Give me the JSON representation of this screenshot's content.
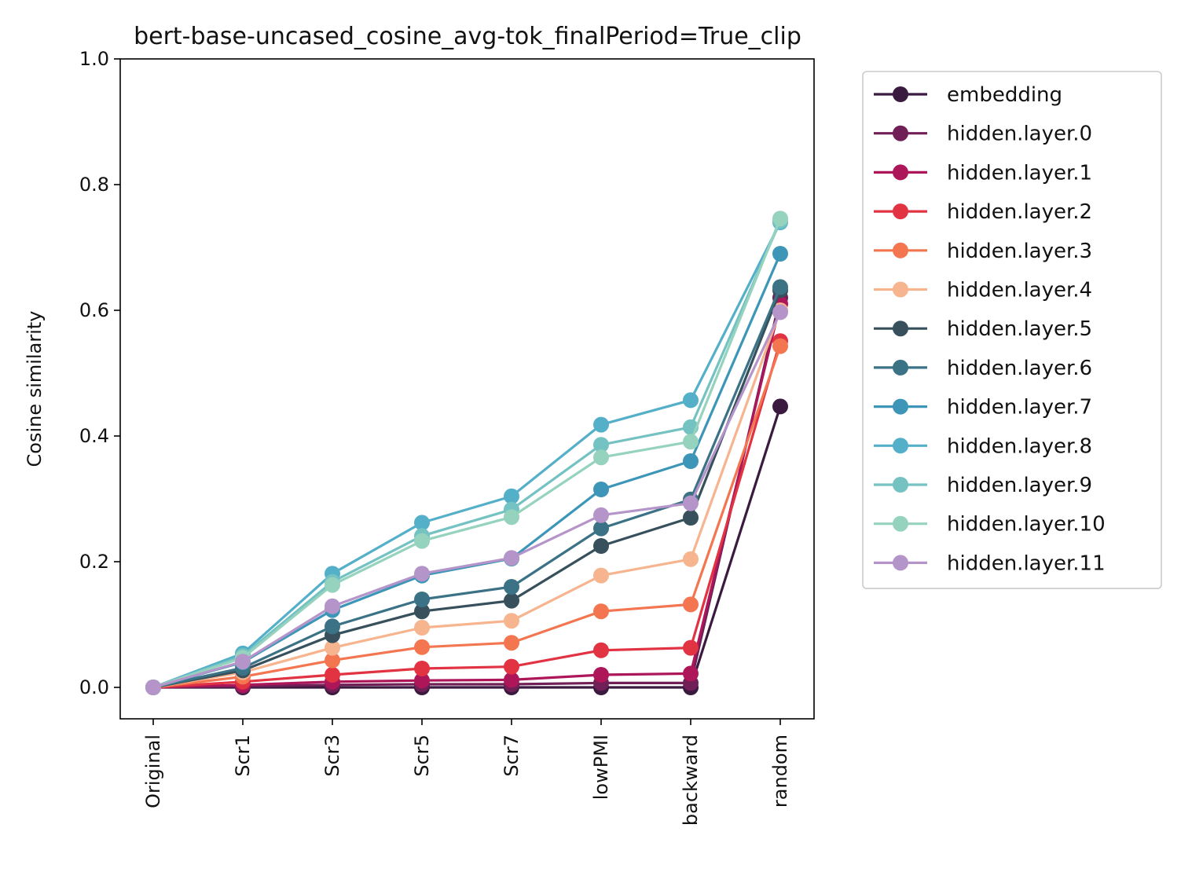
{
  "chart_data": {
    "type": "line",
    "title": "bert-base-uncased_cosine_avg-tok_finalPeriod=True_clip",
    "xlabel": "",
    "ylabel": "Cosine similarity",
    "ylim": [
      -0.05,
      1.0
    ],
    "yticks": [
      "0.0",
      "0.2",
      "0.4",
      "0.6",
      "0.8",
      "1.0"
    ],
    "categories": [
      "Original",
      "Scr1",
      "Scr3",
      "Scr5",
      "Scr7",
      "lowPMI",
      "backward",
      "random"
    ],
    "grid": false,
    "legend_position": "outside-right",
    "series": [
      {
        "name": "embedding",
        "color": "#3b1a40",
        "values": [
          0.0,
          0.0,
          0.0,
          0.0,
          0.0,
          0.0,
          0.0,
          0.447
        ]
      },
      {
        "name": "hidden.layer.0",
        "color": "#701f57",
        "values": [
          0.0,
          0.002,
          0.004,
          0.005,
          0.005,
          0.007,
          0.007,
          0.62
        ]
      },
      {
        "name": "hidden.layer.1",
        "color": "#ad1759",
        "values": [
          0.0,
          0.004,
          0.009,
          0.011,
          0.012,
          0.02,
          0.022,
          0.61
        ]
      },
      {
        "name": "hidden.layer.2",
        "color": "#e13342",
        "values": [
          0.0,
          0.009,
          0.02,
          0.03,
          0.033,
          0.059,
          0.063,
          0.551
        ]
      },
      {
        "name": "hidden.layer.3",
        "color": "#f37651",
        "values": [
          0.0,
          0.017,
          0.043,
          0.064,
          0.071,
          0.121,
          0.132,
          0.543
        ]
      },
      {
        "name": "hidden.layer.4",
        "color": "#f6b48f",
        "values": [
          0.0,
          0.024,
          0.063,
          0.095,
          0.106,
          0.178,
          0.204,
          0.6
        ]
      },
      {
        "name": "hidden.layer.5",
        "color": "#37505c",
        "values": [
          0.0,
          0.027,
          0.083,
          0.121,
          0.138,
          0.225,
          0.27,
          0.632
        ]
      },
      {
        "name": "hidden.layer.6",
        "color": "#3b7285",
        "values": [
          0.0,
          0.031,
          0.097,
          0.14,
          0.16,
          0.253,
          0.299,
          0.637
        ]
      },
      {
        "name": "hidden.layer.7",
        "color": "#3d96b8",
        "values": [
          0.0,
          0.04,
          0.123,
          0.178,
          0.205,
          0.315,
          0.36,
          0.69
        ]
      },
      {
        "name": "hidden.layer.8",
        "color": "#54afc9",
        "values": [
          0.0,
          0.054,
          0.181,
          0.262,
          0.304,
          0.418,
          0.457,
          0.74
        ]
      },
      {
        "name": "hidden.layer.9",
        "color": "#74c2c2",
        "values": [
          0.0,
          0.05,
          0.168,
          0.241,
          0.283,
          0.386,
          0.414,
          0.742
        ]
      },
      {
        "name": "hidden.layer.10",
        "color": "#95d3be",
        "values": [
          0.0,
          0.047,
          0.163,
          0.233,
          0.271,
          0.366,
          0.391,
          0.746
        ]
      },
      {
        "name": "hidden.layer.11",
        "color": "#b595c9",
        "values": [
          0.0,
          0.041,
          0.129,
          0.181,
          0.206,
          0.274,
          0.293,
          0.597
        ]
      }
    ]
  }
}
